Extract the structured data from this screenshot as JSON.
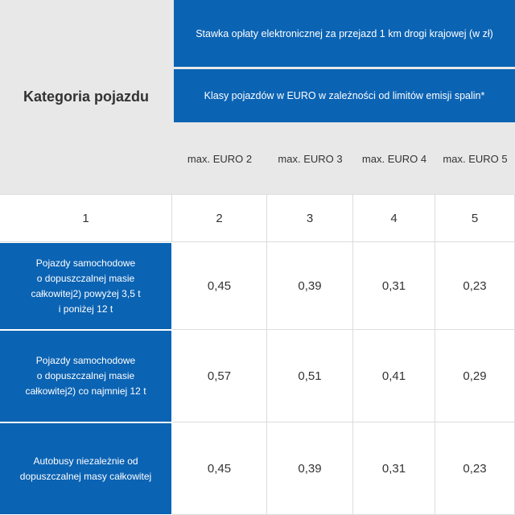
{
  "header": {
    "category_label": "Kategoria pojazdu",
    "rate_title": "Stawka opłaty elektronicznej za przejazd 1 km drogi krajowej (w zł)",
    "euro_title": "Klasy pojazdów w EURO w zależności od limitów emisji spalin*",
    "euro_classes": [
      "max. EURO 2",
      "max. EURO 3",
      "max. EURO 4",
      "max. EURO 5"
    ]
  },
  "column_numbers": [
    "1",
    "2",
    "3",
    "4",
    "5"
  ],
  "rows": [
    {
      "label_lines": [
        "Pojazdy samochodowe",
        "o dopuszczalnej masie",
        "całkowitej2) powyżej 3,5 t",
        "i poniżej 12 t"
      ],
      "values": [
        "0,45",
        "0,39",
        "0,31",
        "0,23"
      ]
    },
    {
      "label_lines": [
        "Pojazdy samochodowe",
        "o dopuszczalnej masie",
        "całkowitej2) co najmniej 12 t"
      ],
      "values": [
        "0,57",
        "0,51",
        "0,41",
        "0,29"
      ]
    },
    {
      "label_lines": [
        "Autobusy niezależnie od",
        "dopuszczalnej masy całkowitej"
      ],
      "values": [
        "0,45",
        "0,39",
        "0,31",
        "0,23"
      ]
    }
  ]
}
